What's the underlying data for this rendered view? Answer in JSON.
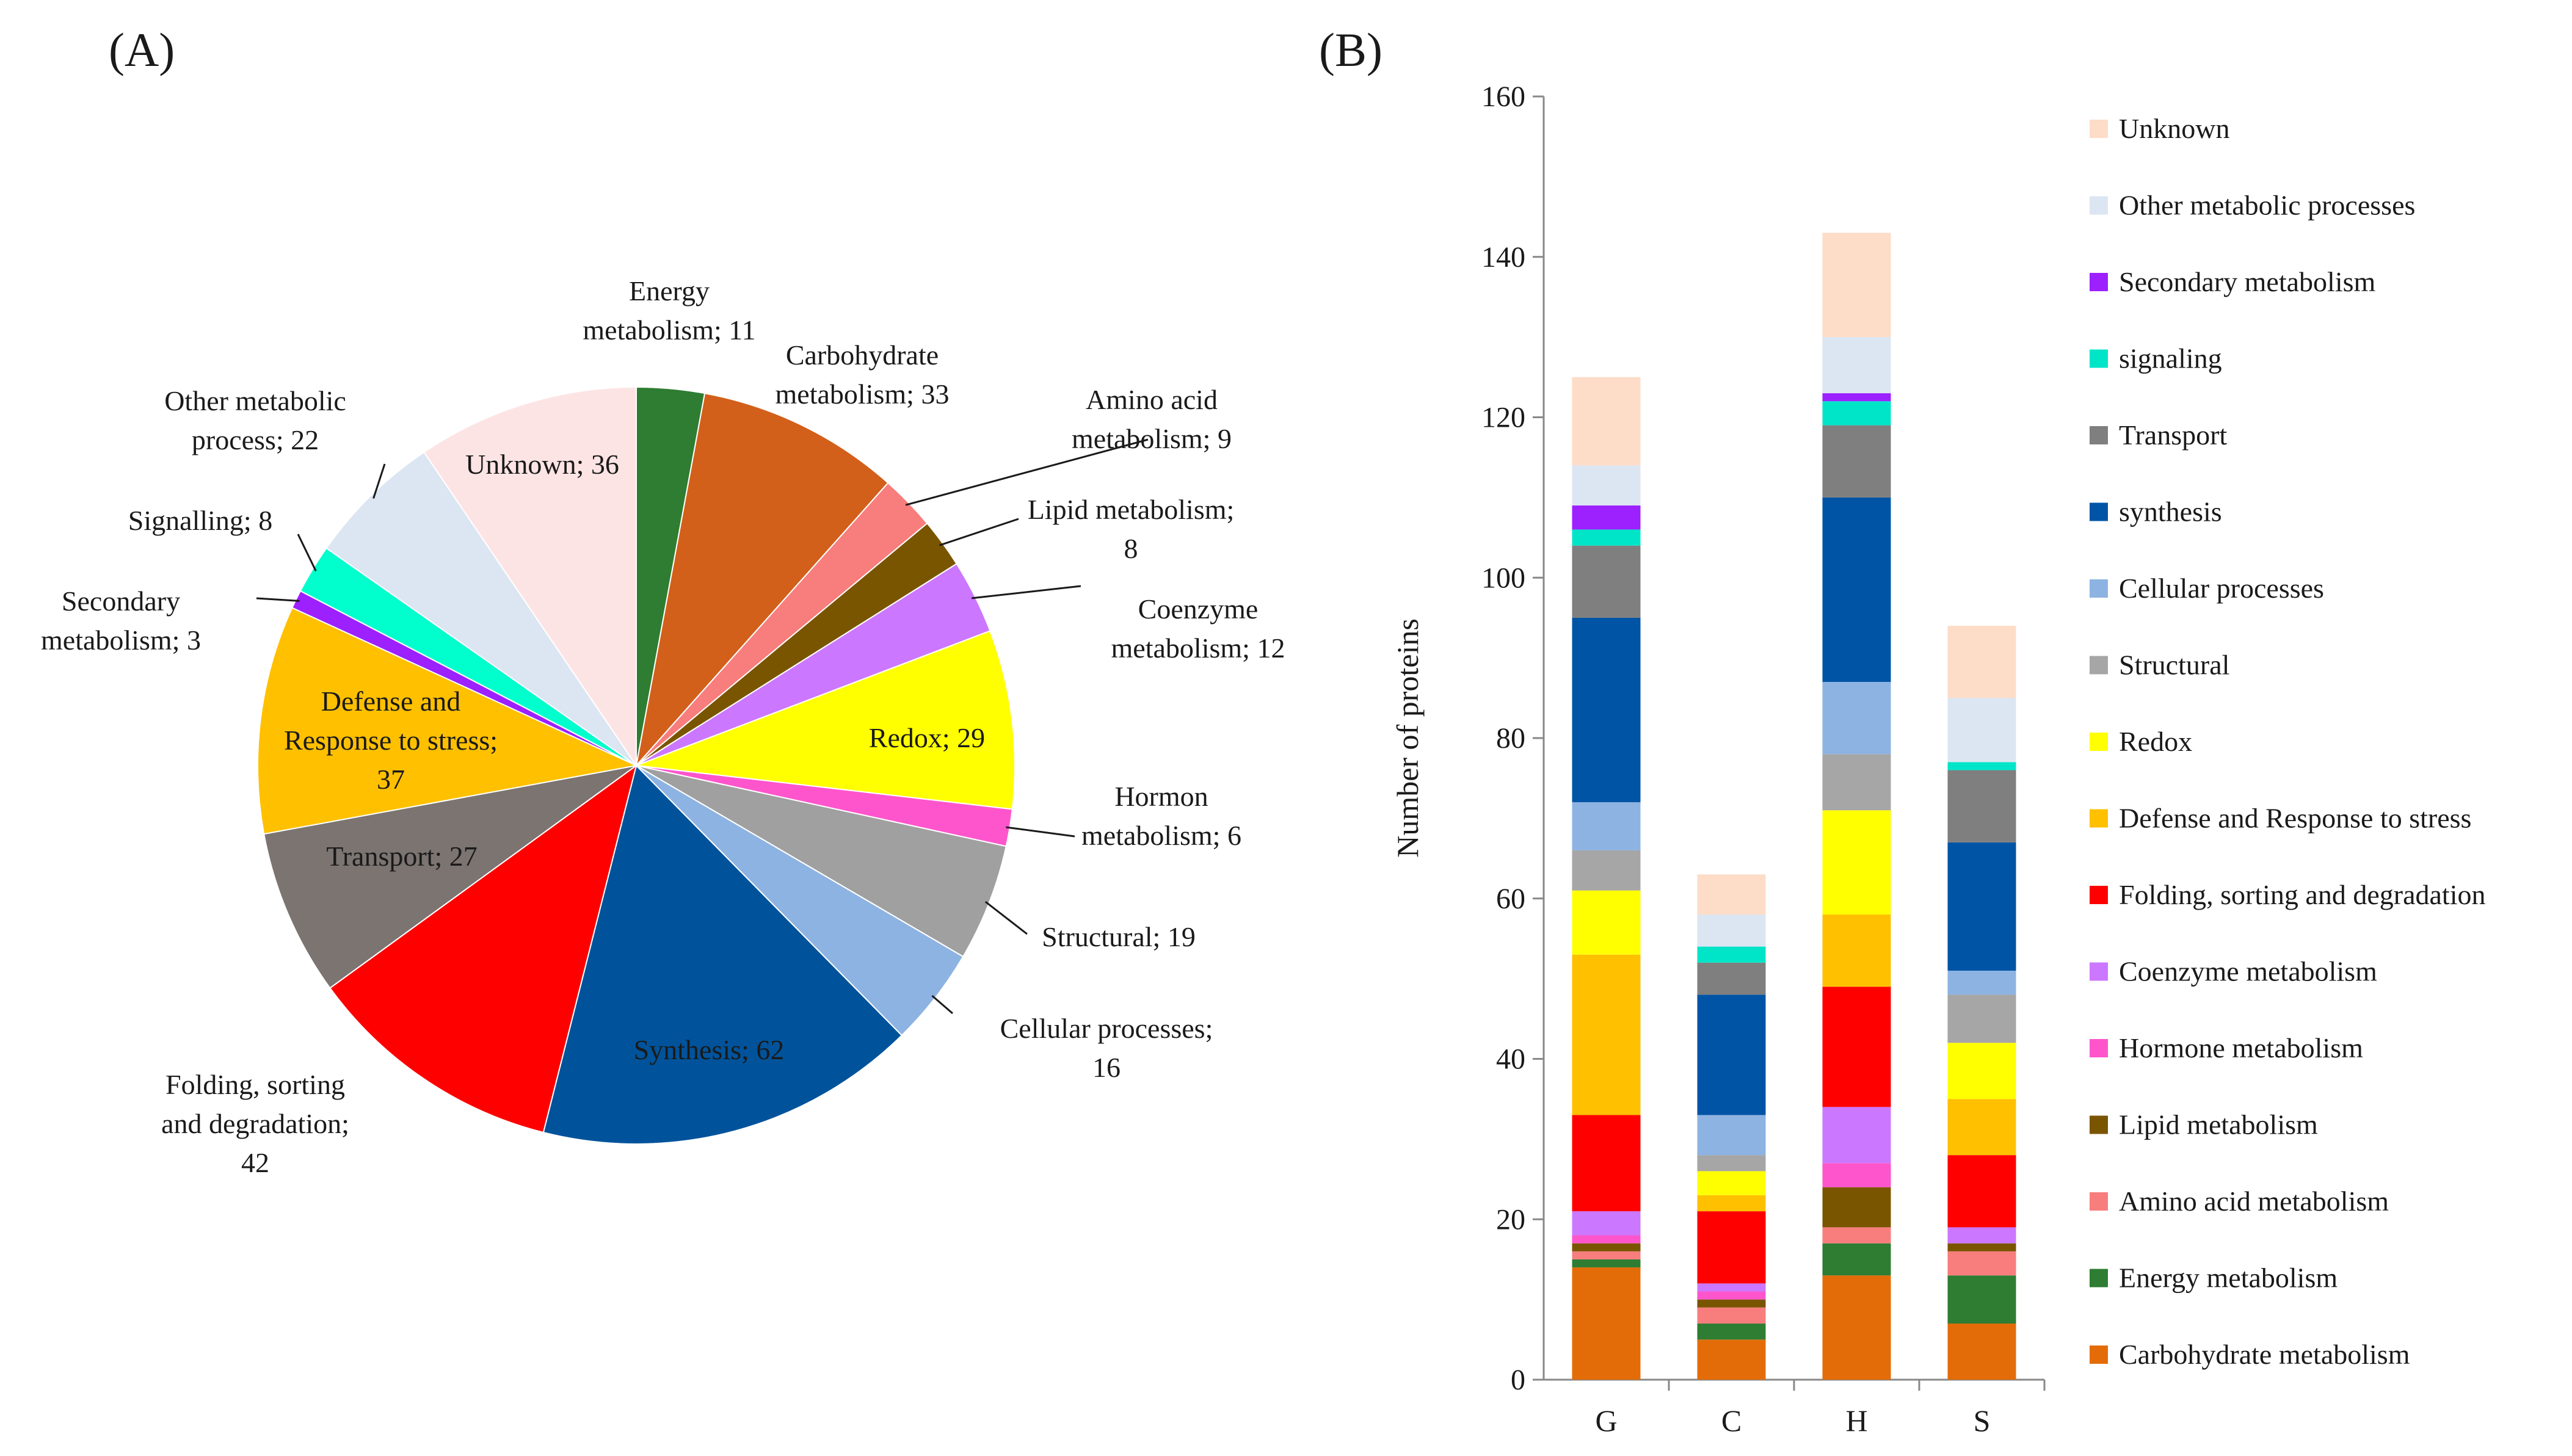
{
  "panels": {
    "a_label": "(A)",
    "b_label": "(B)"
  },
  "chart_data": [
    {
      "type": "pie",
      "panel": "(A)",
      "title": "",
      "slices": [
        {
          "label": "Energy metabolism; 11",
          "lines": [
            "Energy",
            "metabolism; 11"
          ],
          "value": 11,
          "color": "#2e7d32",
          "text_color": "#1a1a1a"
        },
        {
          "label": "Carbohydrate metabolism; 33",
          "lines": [
            "Carbohydrate",
            "metabolism; 33"
          ],
          "value": 33,
          "color": "#d2601a",
          "text_color": "#1a1a1a"
        },
        {
          "label": "Amino acid metabolism; 9",
          "lines": [
            "Amino acid",
            "metabolism; 9"
          ],
          "value": 9,
          "color": "#f87d7d",
          "text_color": "#1a1a1a"
        },
        {
          "label": "Lipid metabolism; 8",
          "lines": [
            "Lipid metabolism;",
            "8"
          ],
          "value": 8,
          "color": "#7a5500",
          "text_color": "#1a1a1a"
        },
        {
          "label": "Coenzyme metabolism; 12",
          "lines": [
            "Coenzyme",
            "metabolism; 12"
          ],
          "value": 12,
          "color": "#cc77ff",
          "text_color": "#1a1a1a"
        },
        {
          "label": "Redox; 29",
          "lines": [
            "Redox; 29"
          ],
          "value": 29,
          "color": "#ffff00",
          "text_color": "#1a1a1a"
        },
        {
          "label": "Hormon metabolism; 6",
          "lines": [
            "Hormon",
            "metabolism; 6"
          ],
          "value": 6,
          "color": "#ff55cc",
          "text_color": "#1a1a1a"
        },
        {
          "label": "Structural; 19",
          "lines": [
            "Structural; 19"
          ],
          "value": 19,
          "color": "#a0a0a0",
          "text_color": "#1a1a1a"
        },
        {
          "label": "Cellular processes; 16",
          "lines": [
            "Cellular processes;",
            "16"
          ],
          "value": 16,
          "color": "#8db3e2",
          "text_color": "#1a1a1a"
        },
        {
          "label": "Synthesis; 62",
          "lines": [
            "Synthesis; 62"
          ],
          "value": 62,
          "color": "#00539b",
          "text_color": "#ffffff"
        },
        {
          "label": "Folding, sorting and degradation; 42",
          "lines": [
            "Folding,  sorting",
            "and degradation;",
            "42"
          ],
          "value": 42,
          "color": "#ff0000",
          "text_color": "#1a1a1a"
        },
        {
          "label": "Transport; 27",
          "lines": [
            "Transport; 27"
          ],
          "value": 27,
          "color": "#7b7470",
          "text_color": "#ffffff"
        },
        {
          "label": "Defense and Response to stress; 37",
          "lines": [
            "Defense and",
            "Response to stress;",
            "37"
          ],
          "value": 37,
          "color": "#ffc000",
          "text_color": "#1a1a1a"
        },
        {
          "label": "Secondary metabolism; 3",
          "lines": [
            "Secondary",
            "metabolism; 3"
          ],
          "value": 3,
          "color": "#9d20ff",
          "text_color": "#1a1a1a"
        },
        {
          "label": "Signalling; 8",
          "lines": [
            "Signalling; 8"
          ],
          "value": 8,
          "color": "#00ffcc",
          "text_color": "#1a1a1a"
        },
        {
          "label": "Other metabolic process; 22",
          "lines": [
            "Other metabolic",
            "process; 22"
          ],
          "value": 22,
          "color": "#dce6f2",
          "text_color": "#1a1a1a"
        },
        {
          "label": "Unknown; 36",
          "lines": [
            "Unknown; 36"
          ],
          "value": 36,
          "color": "#fde4e4",
          "text_color": "#1a1a1a"
        }
      ]
    },
    {
      "type": "bar",
      "stacked": true,
      "panel": "(B)",
      "title": "",
      "categories": [
        "G",
        "C",
        "H",
        "S"
      ],
      "xlabel": "",
      "ylabel": "Number of proteins",
      "ylim": [
        0,
        160
      ],
      "yticks": [
        0,
        20,
        40,
        60,
        80,
        100,
        120,
        140,
        160
      ],
      "series": [
        {
          "name": "Carbohydrate metabolism",
          "color": "#e36c09",
          "values": [
            14,
            5,
            13,
            7
          ]
        },
        {
          "name": "Energy metabolism",
          "color": "#2e7d32",
          "values": [
            1,
            2,
            4,
            6
          ]
        },
        {
          "name": "Amino acid metabolism",
          "color": "#f87d7d",
          "values": [
            1,
            2,
            2,
            3
          ]
        },
        {
          "name": "Lipid metabolism",
          "color": "#7a5500",
          "values": [
            1,
            1,
            5,
            1
          ]
        },
        {
          "name": "Hormone metabolism",
          "color": "#ff55cc",
          "values": [
            1,
            1,
            3,
            0
          ]
        },
        {
          "name": "Coenzyme metabolism",
          "color": "#cc77ff",
          "values": [
            3,
            1,
            7,
            2
          ]
        },
        {
          "name": "Folding, sorting and degradation",
          "color": "#ff0000",
          "values": [
            12,
            9,
            15,
            9
          ]
        },
        {
          "name": "Defense and Response to stress",
          "color": "#ffc000",
          "values": [
            20,
            2,
            9,
            7
          ]
        },
        {
          "name": "Redox",
          "color": "#ffff00",
          "values": [
            8,
            3,
            13,
            7
          ]
        },
        {
          "name": "Structural",
          "color": "#a6a6a6",
          "values": [
            5,
            2,
            7,
            6
          ]
        },
        {
          "name": "Cellular processes",
          "color": "#8db3e2",
          "values": [
            6,
            5,
            9,
            3
          ]
        },
        {
          "name": "synthesis",
          "color": "#0054a6",
          "values": [
            23,
            15,
            23,
            16
          ]
        },
        {
          "name": "Transport",
          "color": "#7f7f7f",
          "values": [
            9,
            4,
            9,
            9
          ]
        },
        {
          "name": "signaling",
          "color": "#00e5c8",
          "values": [
            2,
            2,
            3,
            1
          ]
        },
        {
          "name": "Secondary metabolism",
          "color": "#9d20ff",
          "values": [
            3,
            0,
            1,
            0
          ]
        },
        {
          "name": "Other metabolic processes",
          "color": "#dce6f2",
          "values": [
            5,
            4,
            7,
            8
          ]
        },
        {
          "name": "Unknown",
          "color": "#fddcc8",
          "values": [
            11,
            5,
            13,
            9
          ]
        }
      ],
      "legend_order_top_to_bottom": [
        "Unknown",
        "Other metabolic processes",
        "Secondary metabolism",
        "signaling",
        "Transport",
        "synthesis",
        "Cellular processes",
        "Structural",
        "Redox",
        "Defense and Response to stress",
        "Folding, sorting and degradation",
        "Coenzyme metabolism",
        "Hormone metabolism",
        "Lipid metabolism",
        "Amino acid metabolism",
        "Energy metabolism",
        "Carbohydrate metabolism"
      ],
      "legend_position": "right"
    }
  ]
}
